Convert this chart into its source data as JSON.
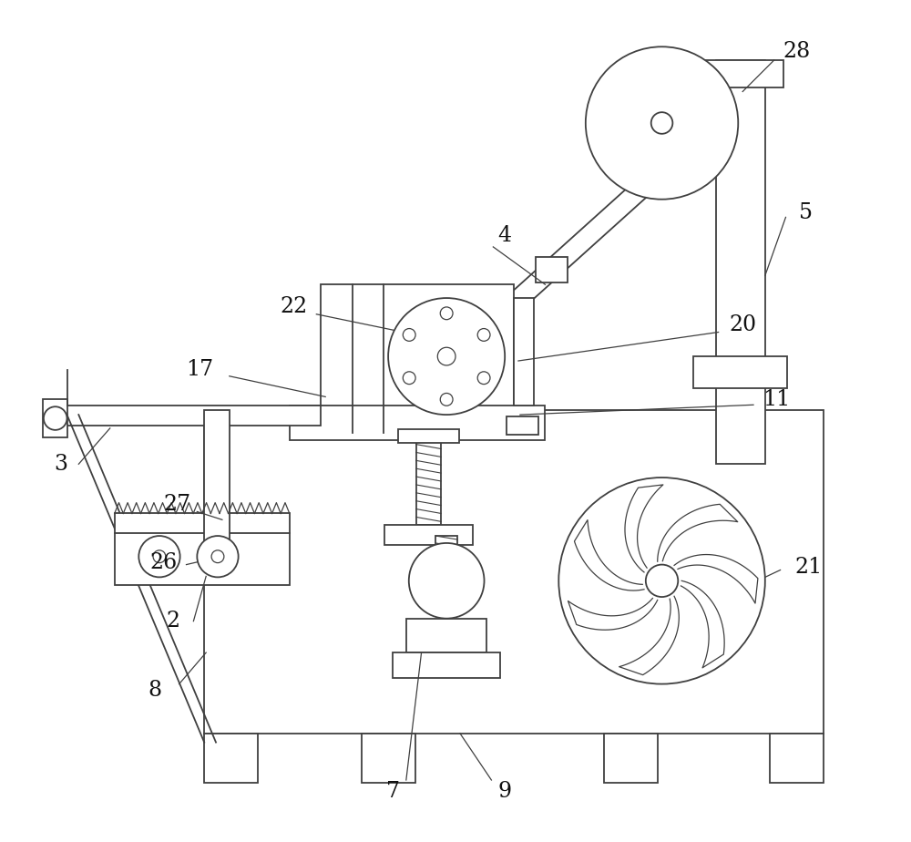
{
  "background_color": "#ffffff",
  "line_color": "#404040",
  "label_color": "#111111",
  "figsize": [
    10.0,
    9.24
  ],
  "dpi": 100
}
